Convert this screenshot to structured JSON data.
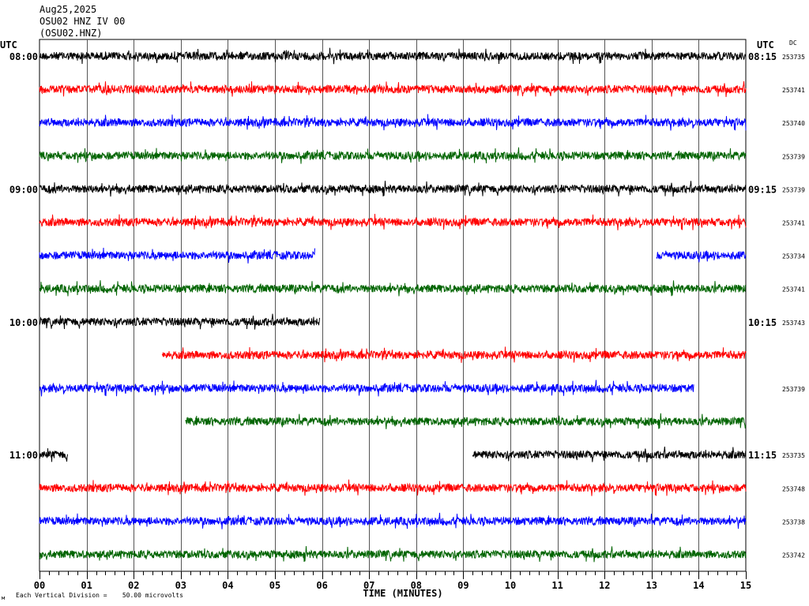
{
  "header": {
    "date": "Aug25,2025",
    "station_line": "OSU02 HNZ IV 00",
    "channel_line": "(OSU02.HNZ)"
  },
  "labels": {
    "left_utc": "UTC",
    "right_utc": "UTC",
    "dc": "DC",
    "x_axis_title": "TIME (MINUTES)",
    "footer_scale": "Each Vertical Division =    50.00 microvolts",
    "footer_mark": "м"
  },
  "colors": {
    "background": "#ffffff",
    "grid": "#000000",
    "trace_cycle": [
      "#000000",
      "#ff0000",
      "#0000ff",
      "#006400"
    ]
  },
  "chart_data": {
    "type": "line",
    "title": "",
    "xlabel": "TIME (MINUTES)",
    "ylabel": "",
    "xlim": [
      0,
      15
    ],
    "x_ticks": [
      "00",
      "01",
      "02",
      "03",
      "04",
      "05",
      "06",
      "07",
      "08",
      "09",
      "10",
      "11",
      "12",
      "13",
      "14",
      "15"
    ],
    "minor_ticks_per_minute": 5,
    "grid": true,
    "rows": [
      {
        "left_label": "08:00",
        "right_label": "08:15",
        "dc": "253735",
        "color": "#000000",
        "segments": [
          [
            0,
            15
          ]
        ],
        "amplitude": 5
      },
      {
        "left_label": "",
        "right_label": "",
        "dc": "253741",
        "color": "#ff0000",
        "segments": [
          [
            0,
            15
          ]
        ],
        "amplitude": 5
      },
      {
        "left_label": "",
        "right_label": "",
        "dc": "253740",
        "color": "#0000ff",
        "segments": [
          [
            0,
            15
          ]
        ],
        "amplitude": 5
      },
      {
        "left_label": "",
        "right_label": "",
        "dc": "253739",
        "color": "#006400",
        "segments": [
          [
            0,
            15
          ]
        ],
        "amplitude": 5
      },
      {
        "left_label": "09:00",
        "right_label": "09:15",
        "dc": "253739",
        "color": "#000000",
        "segments": [
          [
            0,
            15
          ]
        ],
        "amplitude": 5
      },
      {
        "left_label": "",
        "right_label": "",
        "dc": "253741",
        "color": "#ff0000",
        "segments": [
          [
            0,
            15
          ]
        ],
        "amplitude": 5
      },
      {
        "left_label": "",
        "right_label": "",
        "dc": "253734",
        "color": "#0000ff",
        "segments": [
          [
            0,
            5.85
          ],
          [
            13.1,
            15
          ]
        ],
        "amplitude": 5
      },
      {
        "left_label": "",
        "right_label": "",
        "dc": "253741",
        "color": "#006400",
        "segments": [
          [
            0,
            15
          ]
        ],
        "amplitude": 5
      },
      {
        "left_label": "10:00",
        "right_label": "10:15",
        "dc": "253743",
        "color": "#000000",
        "segments": [
          [
            0,
            5.95
          ]
        ],
        "amplitude": 5
      },
      {
        "left_label": "",
        "right_label": "",
        "dc": "",
        "color": "#ff0000",
        "segments": [
          [
            2.6,
            15
          ]
        ],
        "amplitude": 5
      },
      {
        "left_label": "",
        "right_label": "",
        "dc": "253739",
        "color": "#0000ff",
        "segments": [
          [
            0,
            13.9
          ]
        ],
        "amplitude": 5
      },
      {
        "left_label": "",
        "right_label": "",
        "dc": "",
        "color": "#006400",
        "segments": [
          [
            3.1,
            15
          ]
        ],
        "amplitude": 5
      },
      {
        "left_label": "11:00",
        "right_label": "11:15",
        "dc": "253735",
        "color": "#000000",
        "segments": [
          [
            0,
            0.6
          ],
          [
            9.2,
            15
          ]
        ],
        "amplitude": 5
      },
      {
        "left_label": "",
        "right_label": "",
        "dc": "253748",
        "color": "#ff0000",
        "segments": [
          [
            0,
            15
          ]
        ],
        "amplitude": 5
      },
      {
        "left_label": "",
        "right_label": "",
        "dc": "253738",
        "color": "#0000ff",
        "segments": [
          [
            0,
            15
          ]
        ],
        "amplitude": 5
      },
      {
        "left_label": "",
        "right_label": "",
        "dc": "253742",
        "color": "#006400",
        "segments": [
          [
            0,
            15
          ]
        ],
        "amplitude": 5
      }
    ]
  }
}
